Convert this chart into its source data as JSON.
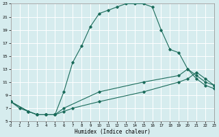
{
  "xlabel": "Humidex (Indice chaleur)",
  "bg_color": "#d6ecee",
  "grid_color": "#ffffff",
  "line_color": "#1a6b5a",
  "xmin": 0,
  "xmax": 23,
  "ymin": 5,
  "ymax": 23,
  "yticks": [
    5,
    7,
    9,
    11,
    13,
    15,
    17,
    19,
    21,
    23
  ],
  "xticks": [
    0,
    1,
    2,
    3,
    4,
    5,
    6,
    7,
    8,
    9,
    10,
    11,
    12,
    13,
    14,
    15,
    16,
    17,
    18,
    19,
    20,
    21,
    22,
    23
  ],
  "line1_x": [
    0,
    1,
    2,
    3,
    4,
    5,
    6,
    7,
    8,
    9,
    10,
    11,
    12,
    13,
    14,
    15,
    16,
    17,
    18,
    19,
    20,
    21,
    22,
    23
  ],
  "line1_y": [
    8,
    7,
    6.5,
    6,
    6,
    6,
    9.5,
    14,
    16.5,
    19.5,
    21.5,
    22,
    22.5,
    23,
    23,
    23,
    22.5,
    19,
    16,
    15.5,
    13,
    11.5,
    10.5,
    10
  ],
  "line2_x": [
    0,
    2,
    3,
    4,
    5,
    6,
    7,
    10,
    15,
    19,
    20,
    21,
    22,
    23
  ],
  "line2_y": [
    8,
    6.5,
    6,
    6,
    6,
    6.5,
    7,
    8,
    9.5,
    11,
    11.5,
    12.5,
    11.5,
    10.5
  ],
  "line3_x": [
    0,
    2,
    3,
    4,
    5,
    6,
    10,
    15,
    19,
    20,
    21,
    22,
    23
  ],
  "line3_y": [
    8,
    6.5,
    6,
    6,
    6,
    7,
    9.5,
    11,
    12,
    13,
    12,
    11,
    10.5
  ]
}
